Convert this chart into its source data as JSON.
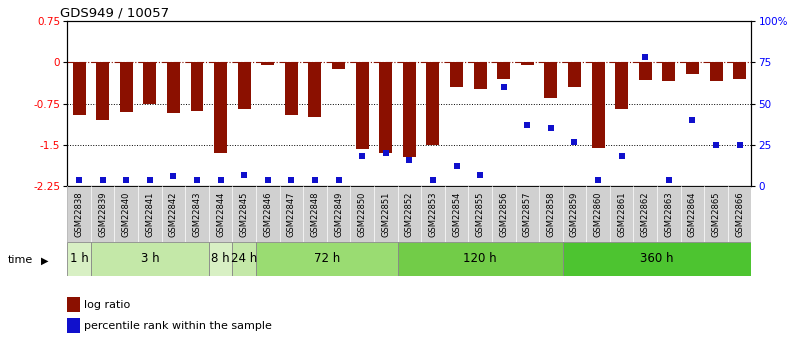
{
  "title": "GDS949 / 10057",
  "samples": [
    "GSM22838",
    "GSM22839",
    "GSM22840",
    "GSM22841",
    "GSM22842",
    "GSM22843",
    "GSM22844",
    "GSM22845",
    "GSM22846",
    "GSM22847",
    "GSM22848",
    "GSM22849",
    "GSM22850",
    "GSM22851",
    "GSM22852",
    "GSM22853",
    "GSM22854",
    "GSM22855",
    "GSM22856",
    "GSM22857",
    "GSM22858",
    "GSM22859",
    "GSM22860",
    "GSM22861",
    "GSM22862",
    "GSM22863",
    "GSM22864",
    "GSM22865",
    "GSM22866"
  ],
  "log_ratio": [
    -0.95,
    -1.05,
    -0.9,
    -0.75,
    -0.92,
    -0.88,
    -1.65,
    -0.85,
    -0.05,
    -0.95,
    -1.0,
    -0.12,
    -1.58,
    -1.65,
    -1.72,
    -1.5,
    -0.45,
    -0.48,
    -0.3,
    -0.05,
    -0.65,
    -0.45,
    -1.55,
    -0.85,
    -0.32,
    -0.35,
    -0.22,
    -0.35,
    -0.3
  ],
  "percentile_rank": [
    4,
    4,
    4,
    4,
    6,
    4,
    4,
    7,
    4,
    4,
    4,
    4,
    18,
    20,
    16,
    4,
    12,
    7,
    60,
    37,
    35,
    27,
    4,
    18,
    78,
    4,
    40,
    25,
    25
  ],
  "time_groups": [
    {
      "label": "1 h",
      "start": 0,
      "end": 1,
      "color": "#d8f0c4"
    },
    {
      "label": "3 h",
      "start": 1,
      "end": 6,
      "color": "#c4e8a8"
    },
    {
      "label": "8 h",
      "start": 6,
      "end": 7,
      "color": "#d8f0c4"
    },
    {
      "label": "24 h",
      "start": 7,
      "end": 8,
      "color": "#c4e8a8"
    },
    {
      "label": "72 h",
      "start": 8,
      "end": 14,
      "color": "#9adc72"
    },
    {
      "label": "120 h",
      "start": 14,
      "end": 21,
      "color": "#72cc48"
    },
    {
      "label": "360 h",
      "start": 21,
      "end": 29,
      "color": "#4dc430"
    }
  ],
  "bar_color": "#8B1000",
  "dot_color": "#1010CC",
  "ylim_left": [
    -2.25,
    0.75
  ],
  "ylim_right": [
    0,
    100
  ],
  "yticks_left": [
    0.75,
    0,
    -0.75,
    -1.5,
    -2.25
  ],
  "ytick_labels_left": [
    "0.75",
    "0",
    "-0.75",
    "-1.5",
    "-2.25"
  ],
  "yticks_right": [
    100,
    75,
    50,
    25,
    0
  ],
  "ytick_labels_right": [
    "100%",
    "75",
    "50",
    "25",
    "0"
  ],
  "dotted_lines": [
    -0.75,
    -1.5
  ],
  "dashdot_line": 0.0,
  "bar_width": 0.55,
  "label_bg_color": "#d0d0d0",
  "time_label_fontsize": 8.5
}
